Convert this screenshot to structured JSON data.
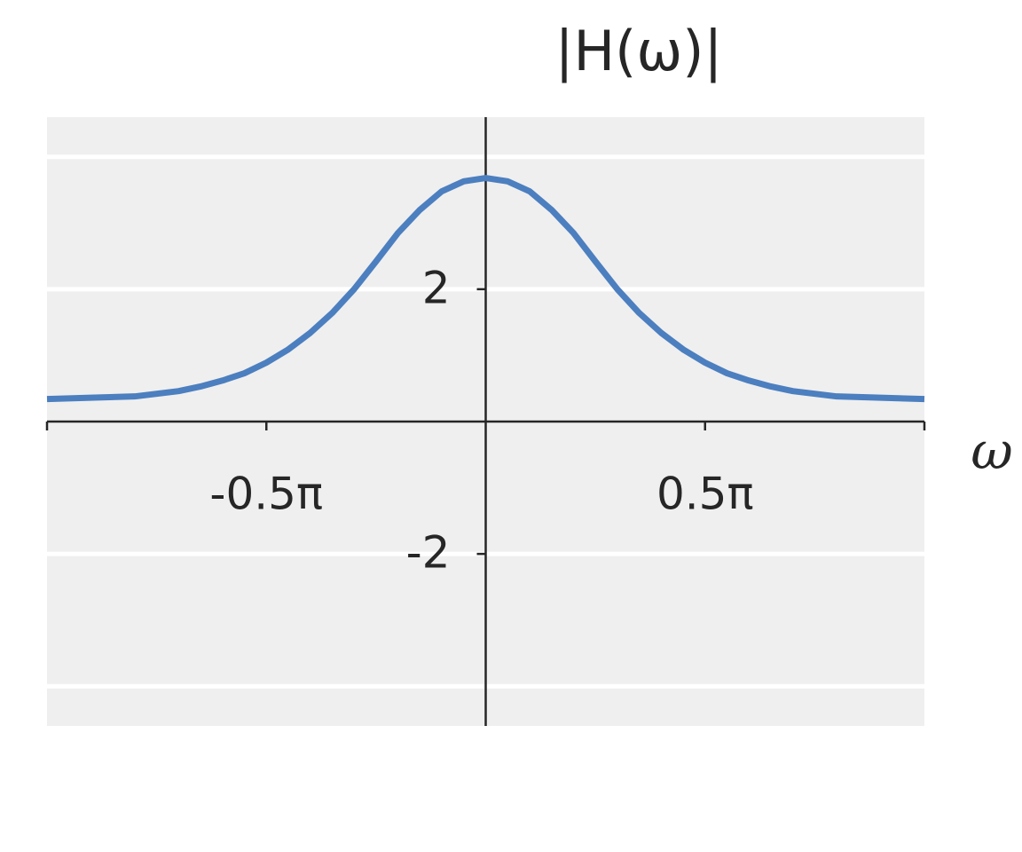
{
  "chart_data": {
    "type": "line",
    "title": "|H(ω)|",
    "x_label": "ω",
    "x": [
      -1,
      -0.9,
      -0.8,
      -0.7,
      -0.65,
      -0.6,
      -0.55,
      -0.5,
      -0.45,
      -0.4,
      -0.35,
      -0.3,
      -0.25,
      -0.2,
      -0.15,
      -0.1,
      -0.05,
      0,
      0.05,
      0.1,
      0.15,
      0.2,
      0.25,
      0.3,
      0.35,
      0.4,
      0.45,
      0.5,
      0.55,
      0.6,
      0.65,
      0.7,
      0.8,
      0.9,
      1
    ],
    "series": [
      {
        "color": "#4c7fbf",
        "values": [
          0.34,
          0.36,
          0.38,
          0.46,
          0.53,
          0.62,
          0.73,
          0.89,
          1.09,
          1.34,
          1.64,
          2.0,
          2.42,
          2.85,
          3.2,
          3.48,
          3.63,
          3.68,
          3.63,
          3.48,
          3.2,
          2.85,
          2.42,
          2.0,
          1.64,
          1.34,
          1.09,
          0.89,
          0.73,
          0.62,
          0.53,
          0.46,
          0.38,
          0.36,
          0.34
        ]
      }
    ],
    "xlim": [
      -1,
      1
    ],
    "ylim": [
      -4.6,
      4.6
    ],
    "xticks": [
      {
        "value": -0.5,
        "label": "-0.5π"
      },
      {
        "value": 0.5,
        "label": "0.5π"
      }
    ],
    "xtick_marks": [
      -1,
      -0.5,
      0.5,
      1
    ],
    "yticks": [
      -2,
      2
    ],
    "ygrid": [
      -4,
      -2,
      2,
      4
    ],
    "background": "#efefef"
  }
}
